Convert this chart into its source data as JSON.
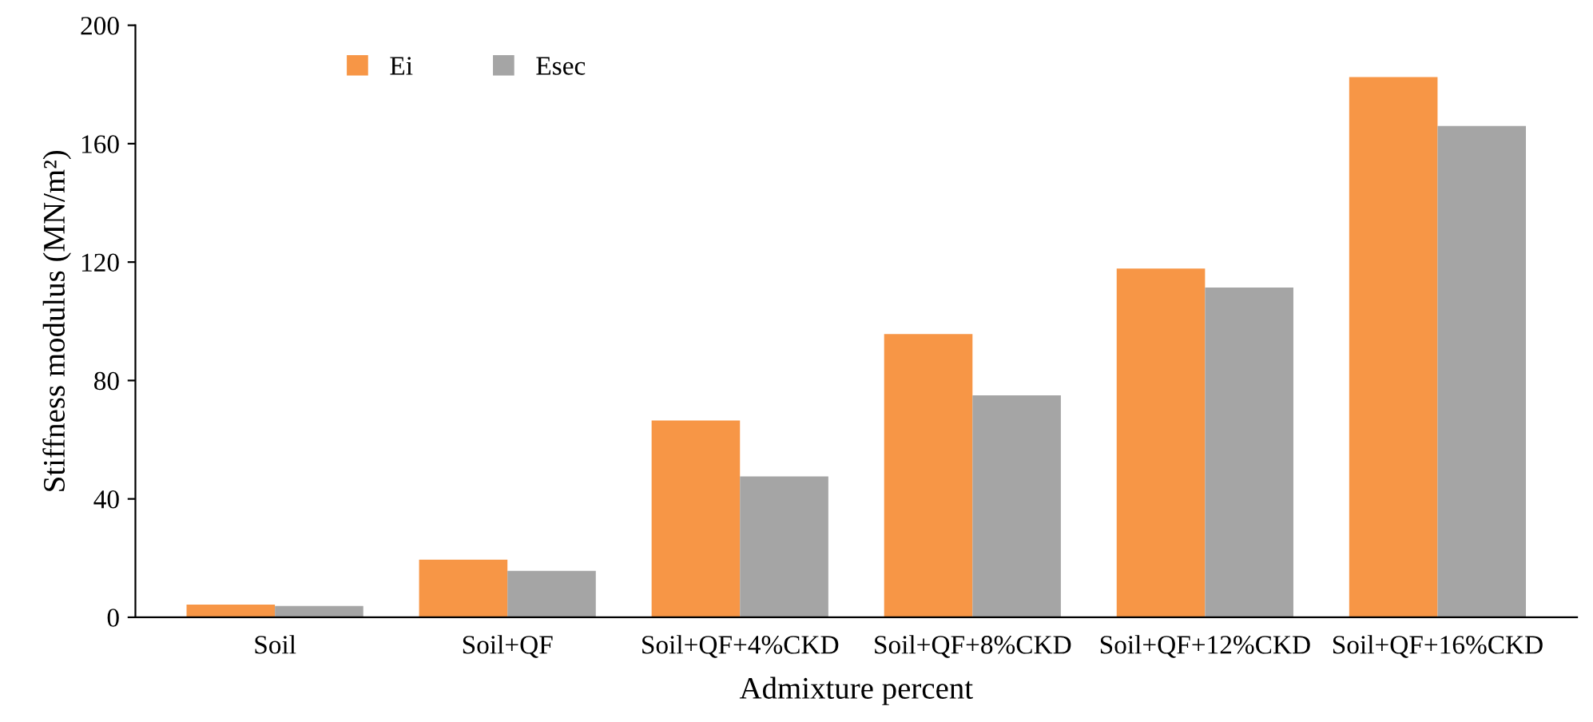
{
  "chart_data": {
    "type": "bar",
    "xlabel": "Admixture percent",
    "ylabel": "Stiffness modulus (MN/m²)",
    "categories": [
      "Soil",
      "Soil+QF",
      "Soil+QF+4%CKD",
      "Soil+QF+8%CKD",
      "Soil+QF+12%CKD",
      "Soil+QF+16%CKD"
    ],
    "series": [
      {
        "name": "Ei",
        "color": "#f79646",
        "values": [
          4.3,
          19.5,
          66.5,
          95.7,
          117.8,
          182.5
        ]
      },
      {
        "name": "Esec",
        "color": "#a5a5a5",
        "values": [
          3.8,
          15.7,
          47.6,
          75,
          111.4,
          166
        ]
      }
    ],
    "ylim": [
      0,
      200
    ],
    "yticks": [
      0,
      40,
      80,
      120,
      160,
      200
    ],
    "grid": false,
    "legend": "top left"
  }
}
